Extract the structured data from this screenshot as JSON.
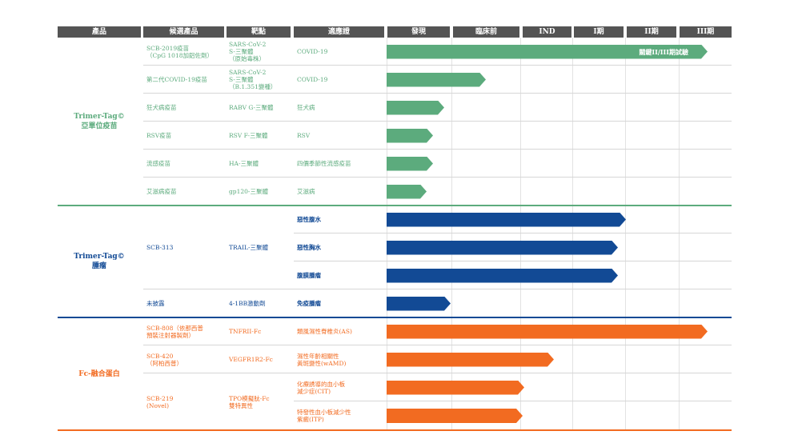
{
  "headers": [
    "產品",
    "候選產品",
    "靶點",
    "適應證",
    "發現",
    "臨床前",
    "IND",
    "I期",
    "II期",
    "III期"
  ],
  "colors": {
    "green": "#5cab7d",
    "blue": "#124a95",
    "orange": "#f26b21",
    "header_bg": "#545454"
  },
  "phase_scale": [
    "發現",
    "臨床前",
    "IND",
    "I期",
    "II期",
    "III期"
  ],
  "sections": [
    {
      "category": [
        "Trimer-Tag©",
        "亞單位疫苗"
      ],
      "color": "green",
      "rows": [
        {
          "candidate": [
            "SCB-2019疫苗",
            "（CpG 1018加鋁佐劑）"
          ],
          "target": [
            "SARS-CoV-2",
            "S-三聚體",
            "（原始毒株）"
          ],
          "indication": [
            "COVID-19"
          ],
          "progress": 1.0,
          "bar_label": "關鍵II/III期試驗"
        },
        {
          "candidate": [
            "第二代COVID-19疫苗"
          ],
          "target": [
            "SARS-CoV-2",
            "S-三聚體",
            "（B.1.351變種）"
          ],
          "indication": [
            "COVID-19"
          ],
          "progress": 0.31,
          "bar_label": ""
        },
        {
          "candidate": [
            "狂犬病疫苗"
          ],
          "target": [
            "RABV G-三聚體"
          ],
          "indication": [
            "狂犬病"
          ],
          "progress": 0.18,
          "bar_label": ""
        },
        {
          "candidate": [
            "RSV疫苗"
          ],
          "target": [
            "RSV F-三聚體"
          ],
          "indication": [
            "RSV"
          ],
          "progress": 0.145,
          "bar_label": ""
        },
        {
          "candidate": [
            "流感疫苗"
          ],
          "target": [
            "HA-三聚體"
          ],
          "indication": [
            "四價季節性流感疫苗"
          ],
          "progress": 0.145,
          "bar_label": ""
        },
        {
          "candidate": [
            "艾滋病疫苗"
          ],
          "target": [
            "gp120-三聚體"
          ],
          "indication": [
            "艾滋病"
          ],
          "progress": 0.125,
          "bar_label": ""
        }
      ]
    },
    {
      "category": [
        "Trimer-Tag©",
        "腫瘤"
      ],
      "color": "blue",
      "rows": [
        {
          "candidate": [
            "SCB-313"
          ],
          "target": [
            "TRAIL-三聚體"
          ],
          "indication": [
            "惡性腹水"
          ],
          "progress": 0.745,
          "bar_label": ""
        },
        {
          "candidate": [],
          "target": [],
          "indication": [
            "惡性胸水"
          ],
          "progress": 0.72,
          "bar_label": ""
        },
        {
          "candidate": [],
          "target": [],
          "indication": [
            "腹膜腫瘤"
          ],
          "progress": 0.72,
          "bar_label": ""
        },
        {
          "candidate": [
            "未披露"
          ],
          "target": [
            "4-1BB激動劑"
          ],
          "indication": [
            "免疫腫瘤"
          ],
          "progress": 0.2,
          "bar_label": ""
        }
      ]
    },
    {
      "category": [
        "Fc-融合蛋白"
      ],
      "color": "orange",
      "rows": [
        {
          "candidate": [
            "SCB-808（依那西普",
            "預裝注射器製劑）"
          ],
          "target": [
            "TNFRII-Fc"
          ],
          "indication": [
            "類風濕性脊椎炎(AS)"
          ],
          "progress": 1.0,
          "bar_label": ""
        },
        {
          "candidate": [
            "SCB-420",
            "（阿柏西普）"
          ],
          "target": [
            "VEGFR1R2-Fc"
          ],
          "indication": [
            "濕性年齡相關性",
            "黃斑變性(wAMD)"
          ],
          "progress": 0.52,
          "bar_label": ""
        },
        {
          "candidate": [
            "SCB-219",
            "(Novel)"
          ],
          "target": [
            "TPO模擬肽-Fc",
            "雙特異性"
          ],
          "indication": [
            "化療誘導的血小板",
            "減少症(CIT)"
          ],
          "progress": 0.43,
          "bar_label": ""
        },
        {
          "candidate": [],
          "target": [],
          "indication": [
            "特發性血小板減少性",
            "紫癜(ITP)"
          ],
          "progress": 0.425,
          "bar_label": ""
        }
      ]
    }
  ]
}
